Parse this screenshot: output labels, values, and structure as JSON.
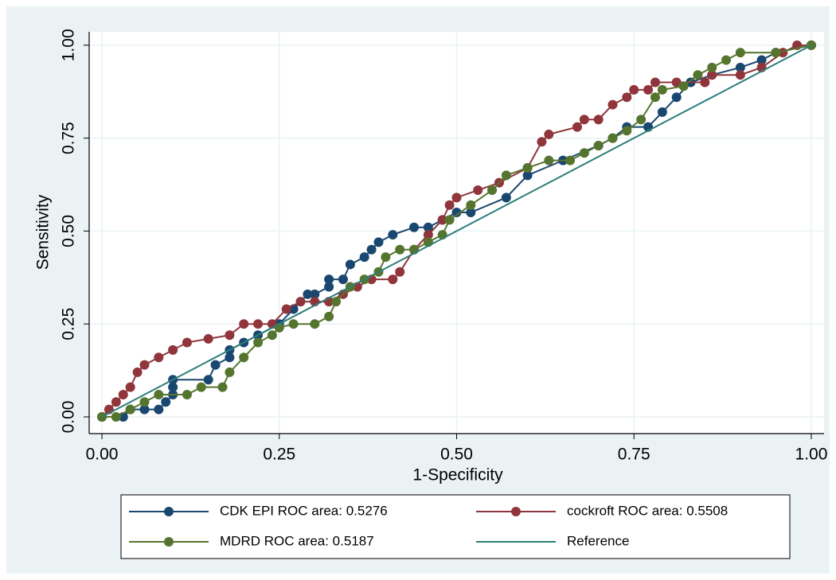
{
  "chart_data": {
    "type": "line",
    "xlabel": "1-Specificity",
    "ylabel": "Sensitivity",
    "xlim": [
      -0.018,
      1.018
    ],
    "ylim": [
      -0.045,
      1.036
    ],
    "xticks": [
      {
        "value": 0,
        "label": "0.00"
      },
      {
        "value": 0.25,
        "label": "0.25"
      },
      {
        "value": 0.5,
        "label": "0.50"
      },
      {
        "value": 0.75,
        "label": "0.75"
      },
      {
        "value": 1,
        "label": "1.00"
      }
    ],
    "yticks": [
      {
        "value": 0,
        "label": "0.00"
      },
      {
        "value": 0.25,
        "label": "0.25"
      },
      {
        "value": 0.5,
        "label": "0.50"
      },
      {
        "value": 0.75,
        "label": "0.75"
      },
      {
        "value": 1,
        "label": "1.00"
      }
    ],
    "grid": true,
    "series": [
      {
        "name": "CDK EPI  ROC area: 0.5276",
        "color": "#1a476f",
        "marker": true,
        "x": [
          0,
          0.03,
          0.04,
          0.06,
          0.08,
          0.09,
          0.1,
          0.1,
          0.1,
          0.15,
          0.16,
          0.18,
          0.18,
          0.2,
          0.22,
          0.25,
          0.27,
          0.29,
          0.3,
          0.32,
          0.32,
          0.34,
          0.35,
          0.37,
          0.38,
          0.39,
          0.41,
          0.44,
          0.46,
          0.48,
          0.5,
          0.52,
          0.57,
          0.6,
          0.65,
          0.7,
          0.72,
          0.74,
          0.77,
          0.79,
          0.81,
          0.83,
          0.86,
          0.9,
          0.93,
          0.95,
          1
        ],
        "values": [
          0,
          0,
          0.02,
          0.02,
          0.02,
          0.04,
          0.06,
          0.08,
          0.1,
          0.1,
          0.14,
          0.16,
          0.18,
          0.2,
          0.22,
          0.25,
          0.29,
          0.33,
          0.33,
          0.35,
          0.37,
          0.37,
          0.41,
          0.43,
          0.45,
          0.47,
          0.49,
          0.51,
          0.51,
          0.53,
          0.55,
          0.55,
          0.59,
          0.65,
          0.69,
          0.73,
          0.75,
          0.78,
          0.78,
          0.82,
          0.86,
          0.9,
          0.92,
          0.94,
          0.96,
          0.98,
          1
        ]
      },
      {
        "name": "cockroft  ROC area: 0.5508",
        "color": "#90353b",
        "marker": true,
        "x": [
          0,
          0.01,
          0.02,
          0.03,
          0.04,
          0.05,
          0.06,
          0.08,
          0.1,
          0.12,
          0.15,
          0.18,
          0.2,
          0.22,
          0.24,
          0.26,
          0.28,
          0.3,
          0.32,
          0.34,
          0.36,
          0.38,
          0.41,
          0.42,
          0.44,
          0.46,
          0.48,
          0.49,
          0.5,
          0.53,
          0.56,
          0.6,
          0.62,
          0.63,
          0.67,
          0.68,
          0.7,
          0.72,
          0.74,
          0.75,
          0.77,
          0.78,
          0.81,
          0.85,
          0.86,
          0.9,
          0.93,
          0.96,
          0.98,
          1
        ],
        "values": [
          0,
          0.02,
          0.04,
          0.06,
          0.08,
          0.12,
          0.14,
          0.16,
          0.18,
          0.2,
          0.21,
          0.22,
          0.25,
          0.25,
          0.25,
          0.29,
          0.31,
          0.31,
          0.31,
          0.33,
          0.35,
          0.37,
          0.37,
          0.39,
          0.45,
          0.49,
          0.53,
          0.57,
          0.59,
          0.61,
          0.63,
          0.67,
          0.74,
          0.76,
          0.78,
          0.8,
          0.8,
          0.84,
          0.86,
          0.88,
          0.88,
          0.9,
          0.9,
          0.9,
          0.92,
          0.92,
          0.94,
          0.98,
          1,
          1
        ]
      },
      {
        "name": "MDRD ROC area: 0.5187",
        "color": "#55752f",
        "marker": true,
        "x": [
          0,
          0.02,
          0.04,
          0.06,
          0.08,
          0.12,
          0.14,
          0.17,
          0.18,
          0.2,
          0.22,
          0.24,
          0.25,
          0.27,
          0.3,
          0.32,
          0.33,
          0.35,
          0.37,
          0.39,
          0.4,
          0.42,
          0.44,
          0.46,
          0.48,
          0.49,
          0.52,
          0.55,
          0.57,
          0.6,
          0.63,
          0.66,
          0.68,
          0.7,
          0.72,
          0.74,
          0.76,
          0.78,
          0.79,
          0.82,
          0.84,
          0.86,
          0.88,
          0.9,
          0.95,
          1
        ],
        "values": [
          0,
          0,
          0.02,
          0.04,
          0.06,
          0.06,
          0.08,
          0.08,
          0.12,
          0.16,
          0.2,
          0.22,
          0.24,
          0.25,
          0.25,
          0.27,
          0.31,
          0.35,
          0.37,
          0.39,
          0.43,
          0.45,
          0.45,
          0.47,
          0.49,
          0.53,
          0.57,
          0.61,
          0.65,
          0.67,
          0.69,
          0.69,
          0.71,
          0.73,
          0.75,
          0.77,
          0.8,
          0.86,
          0.88,
          0.89,
          0.92,
          0.94,
          0.96,
          0.98,
          0.98,
          1
        ]
      },
      {
        "name": "Reference",
        "color": "#2d7d7a",
        "marker": false,
        "x": [
          0,
          1
        ],
        "values": [
          0,
          1
        ]
      }
    ]
  }
}
